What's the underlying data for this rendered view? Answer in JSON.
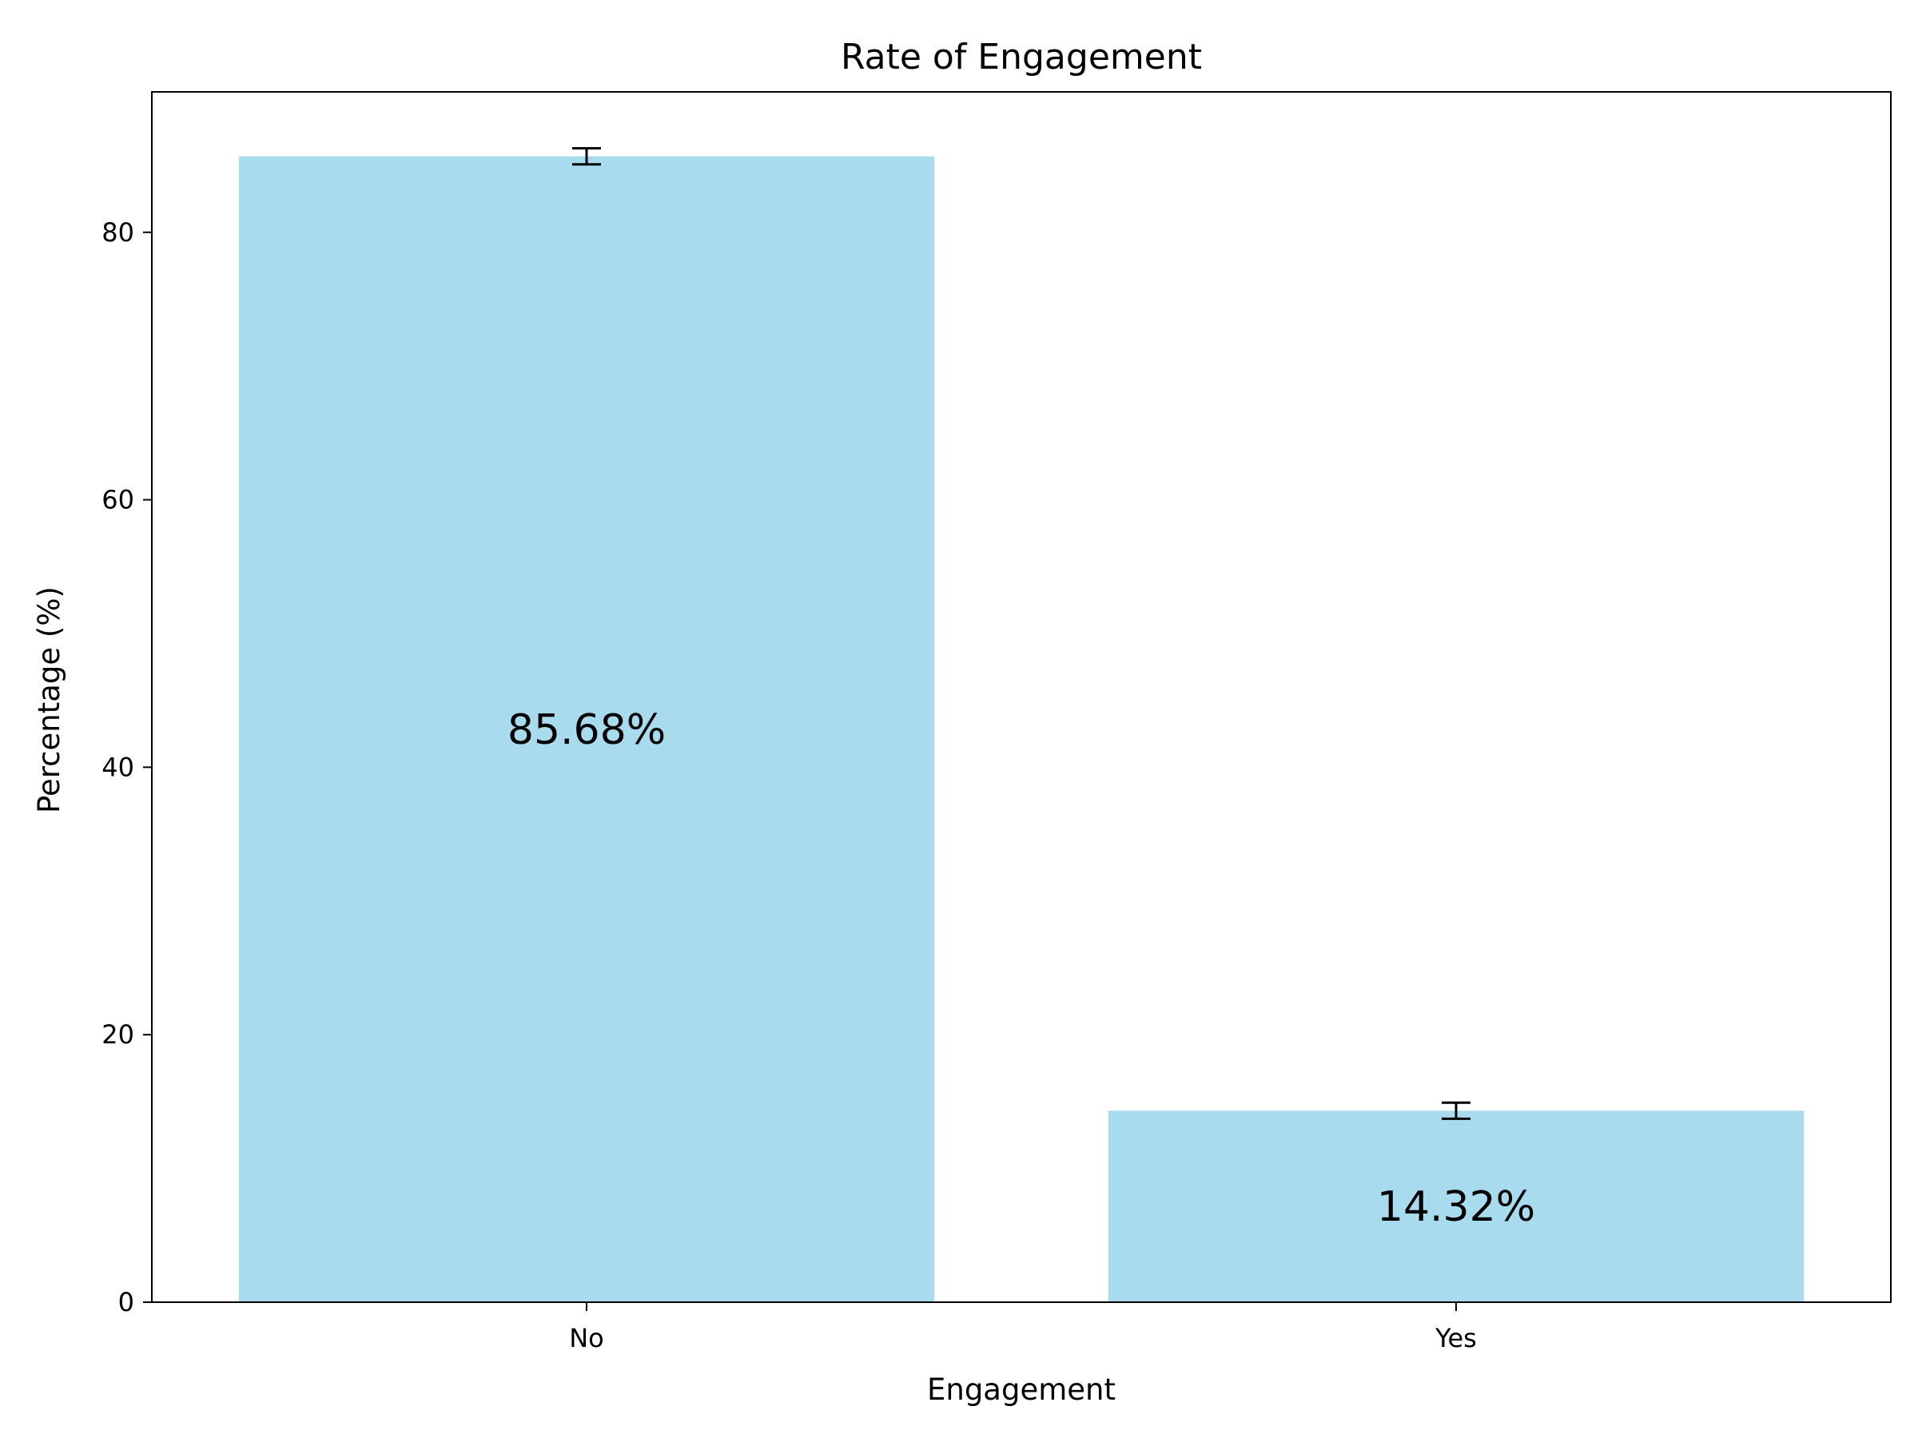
{
  "chart_data": {
    "type": "bar",
    "title": "Rate of Engagement",
    "xlabel": "Engagement",
    "ylabel": "Percentage (%)",
    "categories": [
      "No",
      "Yes"
    ],
    "values": [
      85.68,
      14.32
    ],
    "errors": [
      0.6,
      0.6
    ],
    "data_labels": [
      "85.68%",
      "14.32%"
    ],
    "ylim": [
      0,
      90.5
    ],
    "yticks": [
      0,
      20,
      40,
      60,
      80
    ],
    "ytick_labels": [
      "0",
      "20",
      "40",
      "60",
      "80"
    ],
    "grid": false,
    "legend": "none",
    "colors": {
      "bar": "#a8dbee",
      "error_bar": "#000000",
      "axes": "#000000"
    }
  }
}
